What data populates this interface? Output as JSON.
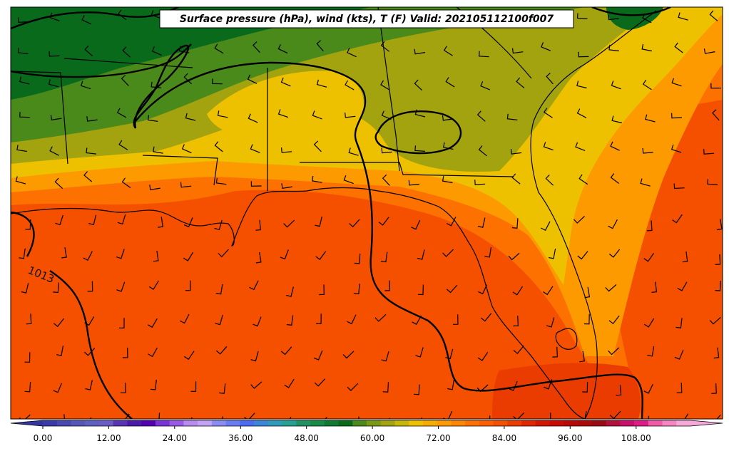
{
  "map": {
    "title": "Surface pressure (hPa), wind (kts), T (F) Valid: 202105112100f007",
    "contour_label": "1013"
  },
  "colorbar": {
    "tick_labels": [
      "0.00",
      "12.00",
      "24.00",
      "36.00",
      "48.00",
      "60.00",
      "72.00",
      "84.00",
      "96.00",
      "108.00"
    ],
    "colors": [
      "#3a3aa8",
      "#4848b0",
      "#5656b8",
      "#5f5fbf",
      "#6a5cc3",
      "#5b33b5",
      "#4b1aa8",
      "#5500b0",
      "#7a33d6",
      "#9b5ae6",
      "#b98af0",
      "#c4a2f4",
      "#8a8cf2",
      "#6a7cf4",
      "#4b6cf2",
      "#3a86d8",
      "#2f9aba",
      "#26a090",
      "#229060",
      "#188a48",
      "#107a30",
      "#0a6a1c",
      "#4a8a1a",
      "#7a9a14",
      "#a3a20f",
      "#c5b608",
      "#edc100",
      "#f7ad00",
      "#fd9a00",
      "#fd8500",
      "#fc7100",
      "#fc5e00",
      "#f54f00",
      "#ea3c00",
      "#e02800",
      "#d41500",
      "#c80a00",
      "#b80808",
      "#aa0a0a",
      "#9a0a14",
      "#b0103a",
      "#c8106a",
      "#e01a88",
      "#f05aa8",
      "#f585c2",
      "#f8a8d8"
    ],
    "extend_min_color": "#3535a0",
    "extend_max_color": "#f8a8d8"
  },
  "legend_colors": {
    "land_green_dark": "#0a6a1c",
    "land_green": "#4a8a1a",
    "olive": "#a3a20f",
    "yellow": "#edc100",
    "orange_light": "#fd9a00",
    "orange": "#fc7100",
    "orange_red": "#f54f00",
    "red_orange": "#ea3c00"
  }
}
